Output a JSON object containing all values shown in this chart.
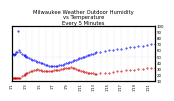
{
  "title": "Milwaukee Weather Outdoor Humidity\nvs Temperature\nEvery 5 Minutes",
  "title_fontsize": 3.8,
  "bg_color": "#ffffff",
  "grid_color": "#aaaaaa",
  "blue_color": "#0000ff",
  "red_color": "#cc0000",
  "ylim": [
    10,
    100
  ],
  "ylabel_right_ticks": [
    10,
    20,
    30,
    40,
    50,
    60,
    70,
    80,
    90,
    100
  ],
  "xlabel_fontsize": 2.5,
  "ylabel_fontsize": 2.8,
  "n_xticks": 22,
  "xtick_labels": [
    "1/1",
    "",
    "1/3",
    "",
    "1/5",
    "",
    "1/7",
    "",
    "1/9",
    "",
    "1/11",
    "",
    "1/13",
    "",
    "1/15",
    "",
    "1/17",
    "",
    "1/19",
    "",
    "1/21",
    ""
  ],
  "blue_x": [
    0,
    1,
    2,
    3,
    4,
    5,
    6,
    7,
    8,
    10,
    12,
    14,
    15,
    16,
    17,
    18,
    20,
    22,
    24,
    26,
    28,
    30,
    32,
    34,
    36,
    38,
    40,
    42,
    44,
    46,
    48,
    50,
    52,
    54,
    56,
    58,
    60,
    62,
    64,
    66,
    68,
    70,
    72,
    74,
    76,
    78,
    80,
    82,
    84,
    86,
    88,
    90,
    92,
    94,
    96,
    98,
    100,
    105,
    110,
    115,
    120,
    125,
    130,
    135,
    140,
    145,
    150,
    155,
    160,
    165,
    170
  ],
  "blue_y": [
    55,
    54,
    53,
    54,
    55,
    57,
    58,
    91,
    60,
    57,
    55,
    53,
    52,
    51,
    50,
    49,
    47,
    46,
    45,
    44,
    43,
    42,
    41,
    40,
    39,
    38,
    37,
    36,
    35,
    35,
    34,
    34,
    35,
    35,
    36,
    37,
    37,
    38,
    39,
    40,
    41,
    42,
    43,
    44,
    45,
    46,
    47,
    48,
    49,
    50,
    51,
    52,
    53,
    54,
    55,
    56,
    57,
    58,
    59,
    60,
    61,
    62,
    63,
    64,
    65,
    66,
    67,
    68,
    69,
    70,
    71
  ],
  "red_x": [
    0,
    1,
    2,
    3,
    4,
    5,
    6,
    7,
    8,
    10,
    12,
    14,
    15,
    16,
    17,
    18,
    20,
    22,
    24,
    26,
    28,
    30,
    32,
    34,
    36,
    38,
    40,
    42,
    44,
    46,
    48,
    50,
    52,
    54,
    56,
    58,
    60,
    62,
    64,
    66,
    68,
    70,
    72,
    74,
    76,
    78,
    80,
    82,
    84,
    86,
    88,
    90,
    92,
    94,
    96,
    98,
    100,
    105,
    110,
    115,
    120,
    125,
    130,
    135,
    140,
    145,
    150,
    155,
    160,
    165,
    170
  ],
  "red_y": [
    15,
    15,
    15,
    15,
    15,
    15,
    15,
    15,
    15,
    16,
    18,
    20,
    21,
    22,
    23,
    24,
    25,
    26,
    27,
    28,
    29,
    30,
    29,
    28,
    27,
    27,
    27,
    27,
    27,
    27,
    27,
    28,
    28,
    29,
    29,
    30,
    30,
    31,
    31,
    32,
    32,
    33,
    32,
    31,
    30,
    29,
    28,
    27,
    26,
    25,
    25,
    24,
    24,
    23,
    23,
    22,
    22,
    23,
    23,
    24,
    25,
    26,
    27,
    28,
    28,
    29,
    30,
    30,
    31,
    31,
    32
  ],
  "xlim": [
    0,
    170
  ]
}
